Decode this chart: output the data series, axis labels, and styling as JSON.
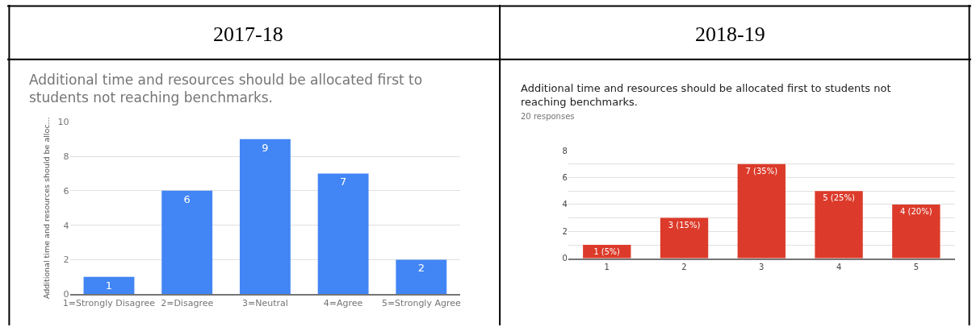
{
  "chart_data": [
    {
      "type": "bar",
      "title": "2017-18",
      "subtitle": "Additional time and resources should be allocated first to students not reaching benchmarks.",
      "ylabel": "Additional time and resources should be alloc...",
      "categories": [
        "1=Strongly Disagree",
        "2=Disagree",
        "3=Neutral",
        "4=Agree",
        "5=Strongly Agree"
      ],
      "values": [
        1,
        6,
        9,
        7,
        2
      ],
      "color": "#4285f4",
      "ylim": [
        0,
        10
      ],
      "yticks": [
        0,
        2,
        4,
        6,
        8,
        10
      ],
      "grid": "y",
      "data_labels": true
    },
    {
      "type": "bar",
      "title": "2018-19",
      "subtitle": "Additional time and resources should be allocated first to students not reaching benchmarks.",
      "annotations": [
        "20 responses"
      ],
      "categories": [
        "1",
        "2",
        "3",
        "4",
        "5"
      ],
      "values": [
        1,
        3,
        7,
        5,
        4
      ],
      "value_labels": [
        "1 (5%)",
        "3 (15%)",
        "7 (35%)",
        "5 (25%)",
        "4 (20%)"
      ],
      "color": "#dc3b2b",
      "ylim": [
        0,
        8
      ],
      "yticks": [
        0,
        {
          "value": 1,
          "label": null
        },
        2,
        {
          "value": 3,
          "label": null
        },
        4,
        {
          "value": 5,
          "label": null
        },
        6,
        {
          "value": 7,
          "label": null
        },
        8
      ],
      "grid": "y"
    }
  ]
}
